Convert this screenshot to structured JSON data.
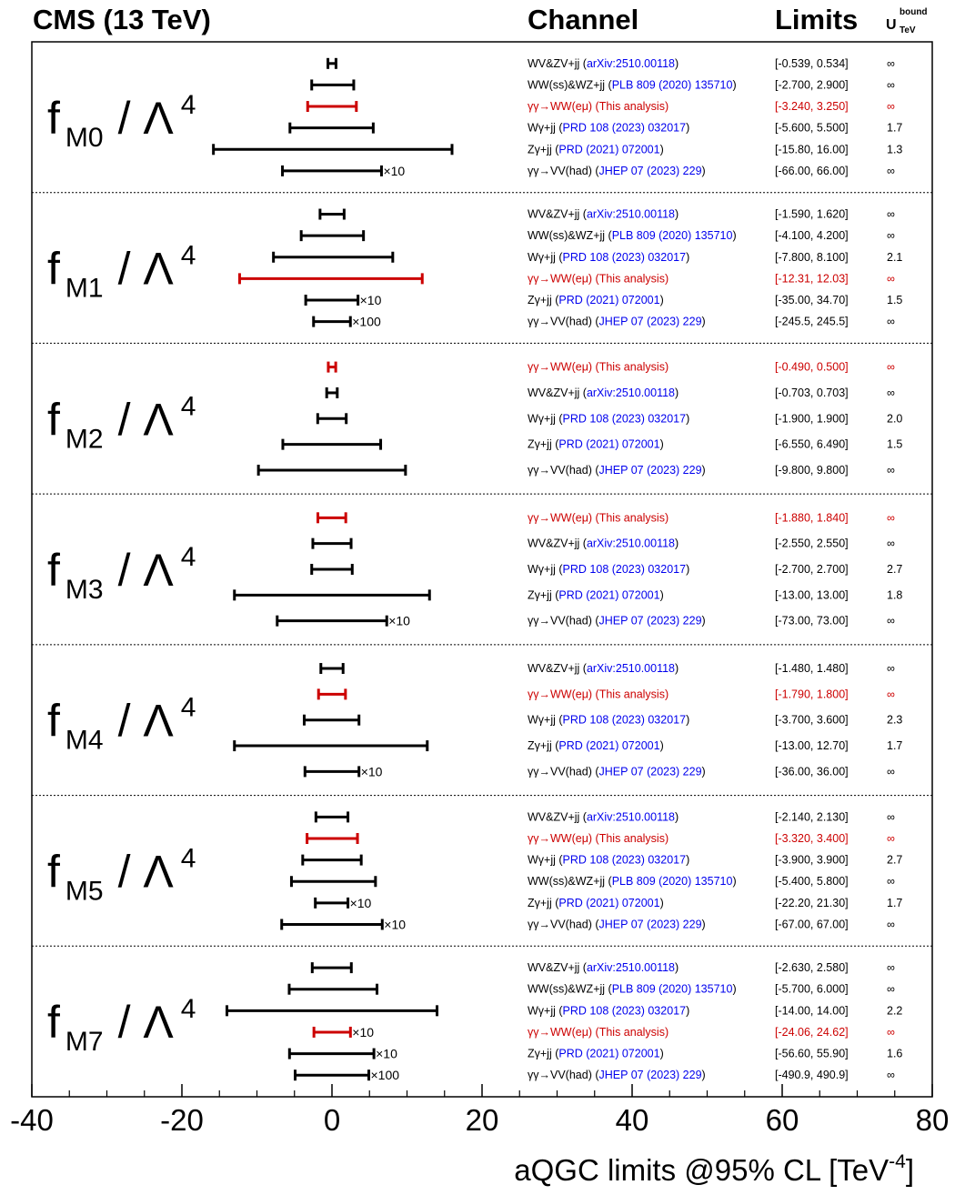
{
  "header": {
    "experiment": "CMS (13 TeV)",
    "channel_col": "Channel",
    "limits_col": "Limits",
    "ubound_main": "U",
    "ubound_sup": "bound",
    "ubound_sub": "TeV"
  },
  "colors": {
    "this_analysis": "#cc0000",
    "reference": "#0000ee",
    "default": "#000000"
  },
  "chart_data": {
    "type": "interval",
    "xlabel": "aQGC limits @95% CL [TeV",
    "xlabel_sup": "-4",
    "xlabel_close": "]",
    "xlim": [
      -40,
      80
    ],
    "xticks": [
      -40,
      -20,
      0,
      20,
      40,
      60,
      80
    ],
    "tick_labels": [
      "-40",
      "-20",
      "0",
      "20",
      "40",
      "60",
      "80"
    ],
    "coefficient_prefix": "f",
    "coefficient_suffix": "/ Λ",
    "coefficient_power": "4",
    "panels": [
      {
        "coefficient": "M0",
        "rows": [
          {
            "channel": "WV&ZV+jj",
            "ref": "arXiv:2510.00118",
            "limits": [
              -0.539,
              0.534
            ],
            "limits_text": "[-0.539, 0.534]",
            "ubound": "∞",
            "this": false,
            "scale": ""
          },
          {
            "channel": "WW(ss)&WZ+jj",
            "ref": "PLB 809 (2020) 135710",
            "limits": [
              -2.7,
              2.9
            ],
            "limits_text": "[-2.700, 2.900]",
            "ubound": "∞",
            "this": false,
            "scale": ""
          },
          {
            "channel": "γγ→WW(eμ) (This analysis)",
            "ref": "",
            "limits": [
              -3.24,
              3.25
            ],
            "limits_text": "[-3.240, 3.250]",
            "ubound": "∞",
            "this": true,
            "scale": ""
          },
          {
            "channel": "Wγ+jj",
            "ref": "PRD 108 (2023) 032017",
            "limits": [
              -5.6,
              5.5
            ],
            "limits_text": "[-5.600, 5.500]",
            "ubound": "1.7",
            "this": false,
            "scale": ""
          },
          {
            "channel": "Zγ+jj",
            "ref": "PRD (2021) 072001",
            "limits": [
              -15.8,
              16.0
            ],
            "limits_text": "[-15.80, 16.00]",
            "ubound": "1.3",
            "this": false,
            "scale": ""
          },
          {
            "channel": "γγ→VV(had)",
            "ref": "JHEP 07 (2023) 229",
            "limits": [
              -66.0,
              66.0
            ],
            "limits_text": "[-66.00, 66.00]",
            "ubound": "∞",
            "this": false,
            "scale": "×10"
          }
        ]
      },
      {
        "coefficient": "M1",
        "rows": [
          {
            "channel": "WV&ZV+jj",
            "ref": "arXiv:2510.00118",
            "limits": [
              -1.59,
              1.62
            ],
            "limits_text": "[-1.590, 1.620]",
            "ubound": "∞",
            "this": false,
            "scale": ""
          },
          {
            "channel": "WW(ss)&WZ+jj",
            "ref": "PLB 809 (2020) 135710",
            "limits": [
              -4.1,
              4.2
            ],
            "limits_text": "[-4.100, 4.200]",
            "ubound": "∞",
            "this": false,
            "scale": ""
          },
          {
            "channel": "Wγ+jj",
            "ref": "PRD 108 (2023) 032017",
            "limits": [
              -7.8,
              8.1
            ],
            "limits_text": "[-7.800, 8.100]",
            "ubound": "2.1",
            "this": false,
            "scale": ""
          },
          {
            "channel": "γγ→WW(eμ) (This analysis)",
            "ref": "",
            "limits": [
              -12.31,
              12.03
            ],
            "limits_text": "[-12.31, 12.03]",
            "ubound": "∞",
            "this": true,
            "scale": ""
          },
          {
            "channel": "Zγ+jj",
            "ref": "PRD (2021) 072001",
            "limits": [
              -35.0,
              34.7
            ],
            "limits_text": "[-35.00, 34.70]",
            "ubound": "1.5",
            "this": false,
            "scale": "×10"
          },
          {
            "channel": "γγ→VV(had)",
            "ref": "JHEP 07 (2023) 229",
            "limits": [
              -245.5,
              245.5
            ],
            "limits_text": "[-245.5, 245.5]",
            "ubound": "∞",
            "this": false,
            "scale": "×100"
          }
        ]
      },
      {
        "coefficient": "M2",
        "rows": [
          {
            "channel": "γγ→WW(eμ) (This analysis)",
            "ref": "",
            "limits": [
              -0.49,
              0.5
            ],
            "limits_text": "[-0.490, 0.500]",
            "ubound": "∞",
            "this": true,
            "scale": ""
          },
          {
            "channel": "WV&ZV+jj",
            "ref": "arXiv:2510.00118",
            "limits": [
              -0.703,
              0.703
            ],
            "limits_text": "[-0.703, 0.703]",
            "ubound": "∞",
            "this": false,
            "scale": ""
          },
          {
            "channel": "Wγ+jj",
            "ref": "PRD 108 (2023) 032017",
            "limits": [
              -1.9,
              1.9
            ],
            "limits_text": "[-1.900, 1.900]",
            "ubound": "2.0",
            "this": false,
            "scale": ""
          },
          {
            "channel": "Zγ+jj",
            "ref": "PRD (2021) 072001",
            "limits": [
              -6.55,
              6.49
            ],
            "limits_text": "[-6.550, 6.490]",
            "ubound": "1.5",
            "this": false,
            "scale": ""
          },
          {
            "channel": "γγ→VV(had)",
            "ref": "JHEP 07 (2023) 229",
            "limits": [
              -9.8,
              9.8
            ],
            "limits_text": "[-9.800, 9.800]",
            "ubound": "∞",
            "this": false,
            "scale": ""
          }
        ]
      },
      {
        "coefficient": "M3",
        "rows": [
          {
            "channel": "γγ→WW(eμ) (This analysis)",
            "ref": "",
            "limits": [
              -1.88,
              1.84
            ],
            "limits_text": "[-1.880, 1.840]",
            "ubound": "∞",
            "this": true,
            "scale": ""
          },
          {
            "channel": "WV&ZV+jj",
            "ref": "arXiv:2510.00118",
            "limits": [
              -2.55,
              2.55
            ],
            "limits_text": "[-2.550, 2.550]",
            "ubound": "∞",
            "this": false,
            "scale": ""
          },
          {
            "channel": "Wγ+jj",
            "ref": "PRD 108 (2023) 032017",
            "limits": [
              -2.7,
              2.7
            ],
            "limits_text": "[-2.700, 2.700]",
            "ubound": "2.7",
            "this": false,
            "scale": ""
          },
          {
            "channel": "Zγ+jj",
            "ref": "PRD (2021) 072001",
            "limits": [
              -13.0,
              13.0
            ],
            "limits_text": "[-13.00, 13.00]",
            "ubound": "1.8",
            "this": false,
            "scale": ""
          },
          {
            "channel": "γγ→VV(had)",
            "ref": "JHEP 07 (2023) 229",
            "limits": [
              -73.0,
              73.0
            ],
            "limits_text": "[-73.00, 73.00]",
            "ubound": "∞",
            "this": false,
            "scale": "×10"
          }
        ]
      },
      {
        "coefficient": "M4",
        "rows": [
          {
            "channel": "WV&ZV+jj",
            "ref": "arXiv:2510.00118",
            "limits": [
              -1.48,
              1.48
            ],
            "limits_text": "[-1.480, 1.480]",
            "ubound": "∞",
            "this": false,
            "scale": ""
          },
          {
            "channel": "γγ→WW(eμ) (This analysis)",
            "ref": "",
            "limits": [
              -1.79,
              1.8
            ],
            "limits_text": "[-1.790, 1.800]",
            "ubound": "∞",
            "this": true,
            "scale": ""
          },
          {
            "channel": "Wγ+jj",
            "ref": "PRD 108 (2023) 032017",
            "limits": [
              -3.7,
              3.6
            ],
            "limits_text": "[-3.700, 3.600]",
            "ubound": "2.3",
            "this": false,
            "scale": ""
          },
          {
            "channel": "Zγ+jj",
            "ref": "PRD (2021) 072001",
            "limits": [
              -13.0,
              12.7
            ],
            "limits_text": "[-13.00, 12.70]",
            "ubound": "1.7",
            "this": false,
            "scale": ""
          },
          {
            "channel": "γγ→VV(had)",
            "ref": "JHEP 07 (2023) 229",
            "limits": [
              -36.0,
              36.0
            ],
            "limits_text": "[-36.00, 36.00]",
            "ubound": "∞",
            "this": false,
            "scale": "×10"
          }
        ]
      },
      {
        "coefficient": "M5",
        "rows": [
          {
            "channel": "WV&ZV+jj",
            "ref": "arXiv:2510.00118",
            "limits": [
              -2.14,
              2.13
            ],
            "limits_text": "[-2.140, 2.130]",
            "ubound": "∞",
            "this": false,
            "scale": ""
          },
          {
            "channel": "γγ→WW(eμ) (This analysis)",
            "ref": "",
            "limits": [
              -3.32,
              3.4
            ],
            "limits_text": "[-3.320, 3.400]",
            "ubound": "∞",
            "this": true,
            "scale": ""
          },
          {
            "channel": "Wγ+jj",
            "ref": "PRD 108 (2023) 032017",
            "limits": [
              -3.9,
              3.9
            ],
            "limits_text": "[-3.900, 3.900]",
            "ubound": "2.7",
            "this": false,
            "scale": ""
          },
          {
            "channel": "WW(ss)&WZ+jj",
            "ref": "PLB 809 (2020) 135710",
            "limits": [
              -5.4,
              5.8
            ],
            "limits_text": "[-5.400, 5.800]",
            "ubound": "∞",
            "this": false,
            "scale": ""
          },
          {
            "channel": "Zγ+jj",
            "ref": "PRD (2021) 072001",
            "limits": [
              -22.2,
              21.3
            ],
            "limits_text": "[-22.20, 21.30]",
            "ubound": "1.7",
            "this": false,
            "scale": "×10"
          },
          {
            "channel": "γγ→VV(had)",
            "ref": "JHEP 07 (2023) 229",
            "limits": [
              -67.0,
              67.0
            ],
            "limits_text": "[-67.00, 67.00]",
            "ubound": "∞",
            "this": false,
            "scale": "×10"
          }
        ]
      },
      {
        "coefficient": "M7",
        "rows": [
          {
            "channel": "WV&ZV+jj",
            "ref": "arXiv:2510.00118",
            "limits": [
              -2.63,
              2.58
            ],
            "limits_text": "[-2.630, 2.580]",
            "ubound": "∞",
            "this": false,
            "scale": ""
          },
          {
            "channel": "WW(ss)&WZ+jj",
            "ref": "PLB 809 (2020) 135710",
            "limits": [
              -5.7,
              6.0
            ],
            "limits_text": "[-5.700, 6.000]",
            "ubound": "∞",
            "this": false,
            "scale": ""
          },
          {
            "channel": "Wγ+jj",
            "ref": "PRD 108 (2023) 032017",
            "limits": [
              -14.0,
              14.0
            ],
            "limits_text": "[-14.00, 14.00]",
            "ubound": "2.2",
            "this": false,
            "scale": ""
          },
          {
            "channel": "γγ→WW(eμ) (This analysis)",
            "ref": "",
            "limits": [
              -24.06,
              24.62
            ],
            "limits_text": "[-24.06, 24.62]",
            "ubound": "∞",
            "this": true,
            "scale": "×10"
          },
          {
            "channel": "Zγ+jj",
            "ref": "PRD (2021) 072001",
            "limits": [
              -56.6,
              55.9
            ],
            "limits_text": "[-56.60, 55.90]",
            "ubound": "1.6",
            "this": false,
            "scale": "×10"
          },
          {
            "channel": "γγ→VV(had)",
            "ref": "JHEP 07 (2023) 229",
            "limits": [
              -490.9,
              490.9
            ],
            "limits_text": "[-490.9, 490.9]",
            "ubound": "∞",
            "this": false,
            "scale": "×100"
          }
        ]
      }
    ]
  }
}
